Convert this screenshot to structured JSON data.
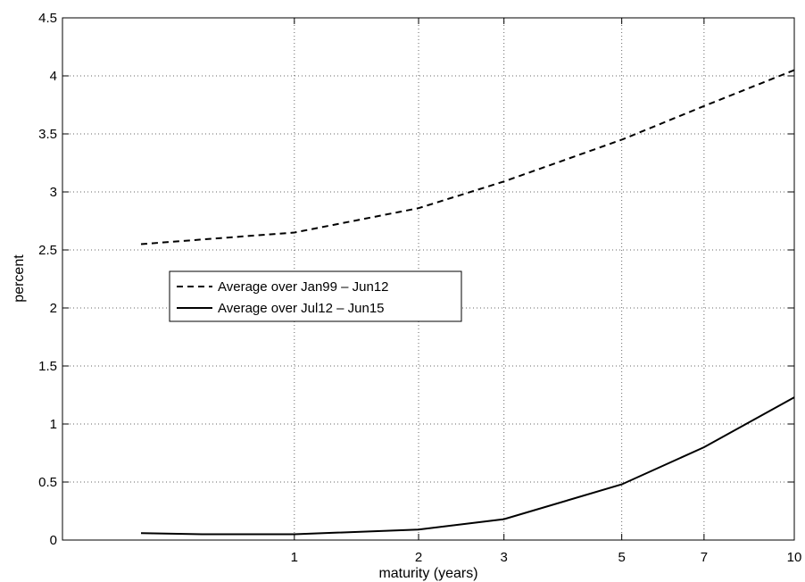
{
  "chart_data": {
    "type": "line",
    "title": "",
    "xlabel": "maturity (years)",
    "ylabel": "percent",
    "xlim": [
      0,
      10
    ],
    "ylim": [
      0,
      4.5
    ],
    "x_ticks": [
      1,
      2,
      3,
      5,
      7,
      10
    ],
    "y_ticks": [
      0,
      0.5,
      1,
      1.5,
      2,
      2.5,
      3,
      3.5,
      4,
      4.5
    ],
    "x_scale": "log",
    "grid": true,
    "legend_position": "center-left",
    "colors": {
      "series_line": "#000000",
      "grid": "#000000",
      "background": "#ffffff"
    },
    "series": [
      {
        "name": "Average over Jan99 – Jun12",
        "style": "dashed",
        "x": [
          0.25,
          0.5,
          1,
          2,
          3,
          5,
          7,
          10
        ],
        "y": [
          2.55,
          2.59,
          2.65,
          2.86,
          3.09,
          3.45,
          3.74,
          4.05
        ]
      },
      {
        "name": "Average over Jul12 – Jun15",
        "style": "solid",
        "x": [
          0.25,
          0.5,
          1,
          2,
          3,
          5,
          7,
          10
        ],
        "y": [
          0.06,
          0.05,
          0.05,
          0.09,
          0.18,
          0.48,
          0.8,
          1.23
        ]
      }
    ]
  }
}
